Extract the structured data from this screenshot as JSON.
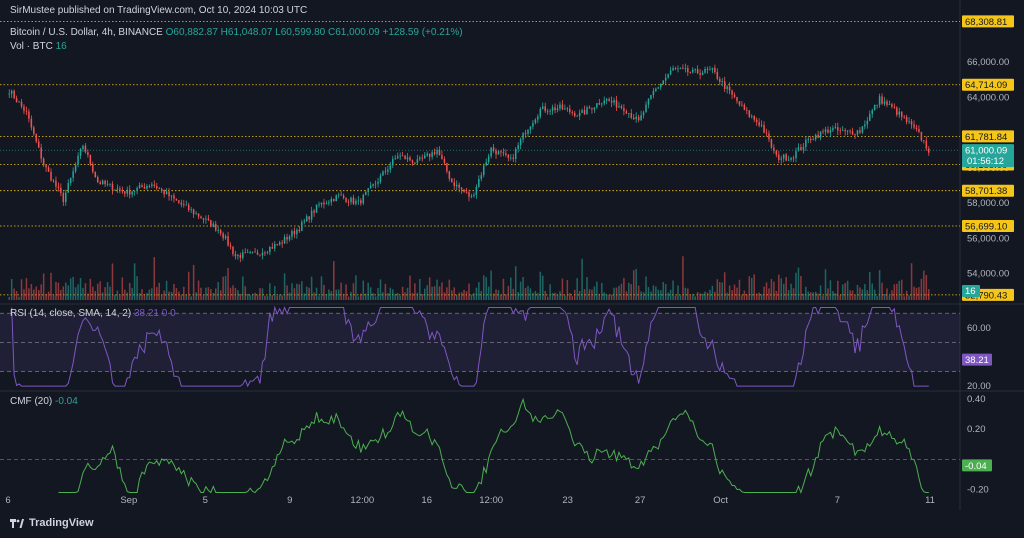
{
  "publisher": "SirMustee published on TradingView.com, Oct 10, 2024 10:03 UTC",
  "symbol": {
    "title": "Bitcoin / U.S. Dollar, 4h, BINANCE",
    "open": "O60,882.87",
    "high": "H61,048.07",
    "low": "L60,599.80",
    "close": "C61,000.09",
    "change": "+128.59 (+0.21%)"
  },
  "vol_label": "Vol · BTC",
  "vol_value": "16",
  "rsi_label": "RSI (14, close, SMA, 14, 2)",
  "rsi_values": "38.21  0  0",
  "cmf_label": "CMF (20)",
  "cmf_value": "-0.04",
  "footer_brand": "TradingView",
  "colors": {
    "bg": "#131722",
    "up": "#26a69a",
    "down": "#ef5350",
    "level": "#f5c518",
    "rsi": "#7e57c2",
    "cmf": "#4caf50"
  },
  "chart_data": [
    {
      "type": "candlestick",
      "title": "Bitcoin / U.S. Dollar, 4h, BINANCE",
      "y_ticks": [
        54000,
        56000,
        58000,
        60000,
        64000,
        66000
      ],
      "ylim": [
        52500,
        68500
      ],
      "x_ticks": [
        "6",
        "Sep",
        "5",
        "9",
        "12:00",
        "16",
        "12:00",
        "23",
        "27",
        "Oct",
        "7",
        "11"
      ],
      "price_levels": [
        68308.81,
        64714.09,
        61781.84,
        60188.0,
        58701.38,
        56699.1,
        52790.43
      ],
      "last_price": "61,000.09",
      "countdown": "01:56:12",
      "anchors": [
        [
          0,
          64400
        ],
        [
          7,
          63100
        ],
        [
          14,
          60200
        ],
        [
          22,
          58200
        ],
        [
          30,
          61300
        ],
        [
          36,
          59200
        ],
        [
          48,
          58600
        ],
        [
          58,
          59100
        ],
        [
          68,
          58100
        ],
        [
          78,
          57200
        ],
        [
          86,
          56400
        ],
        [
          92,
          55000
        ],
        [
          100,
          55100
        ],
        [
          110,
          55700
        ],
        [
          118,
          56600
        ],
        [
          126,
          57900
        ],
        [
          134,
          58400
        ],
        [
          142,
          58000
        ],
        [
          150,
          59300
        ],
        [
          158,
          60700
        ],
        [
          166,
          60300
        ],
        [
          174,
          61000
        ],
        [
          180,
          59200
        ],
        [
          188,
          58300
        ],
        [
          196,
          61100
        ],
        [
          204,
          60400
        ],
        [
          210,
          62100
        ],
        [
          216,
          63300
        ],
        [
          224,
          63400
        ],
        [
          232,
          63000
        ],
        [
          242,
          63900
        ],
        [
          250,
          63400
        ],
        [
          256,
          62600
        ],
        [
          262,
          64300
        ],
        [
          270,
          65600
        ],
        [
          278,
          65400
        ],
        [
          286,
          65500
        ],
        [
          294,
          64100
        ],
        [
          300,
          63100
        ],
        [
          306,
          62400
        ],
        [
          312,
          60600
        ],
        [
          318,
          60600
        ],
        [
          326,
          61700
        ],
        [
          334,
          62200
        ],
        [
          340,
          62000
        ],
        [
          346,
          62100
        ],
        [
          354,
          63900
        ],
        [
          360,
          63300
        ],
        [
          366,
          62500
        ],
        [
          370,
          61900
        ],
        [
          374,
          61000
        ]
      ],
      "candle_count": 375,
      "seed": 7
    },
    {
      "type": "bar",
      "name": "Vol · BTC",
      "last_value": "16"
    },
    {
      "type": "line",
      "name": "RSI (14, close, SMA, 14, 2)",
      "y_ticks": [
        20,
        60
      ],
      "ylim": [
        18,
        75
      ],
      "bands": [
        70,
        50,
        30
      ],
      "last_value": "38.21"
    },
    {
      "type": "line",
      "name": "CMF (20)",
      "y_ticks": [
        -0.2,
        0.2,
        0.4
      ],
      "ylim": [
        -0.25,
        0.44
      ],
      "zero_line": 0,
      "last_value": "-0.04"
    }
  ]
}
